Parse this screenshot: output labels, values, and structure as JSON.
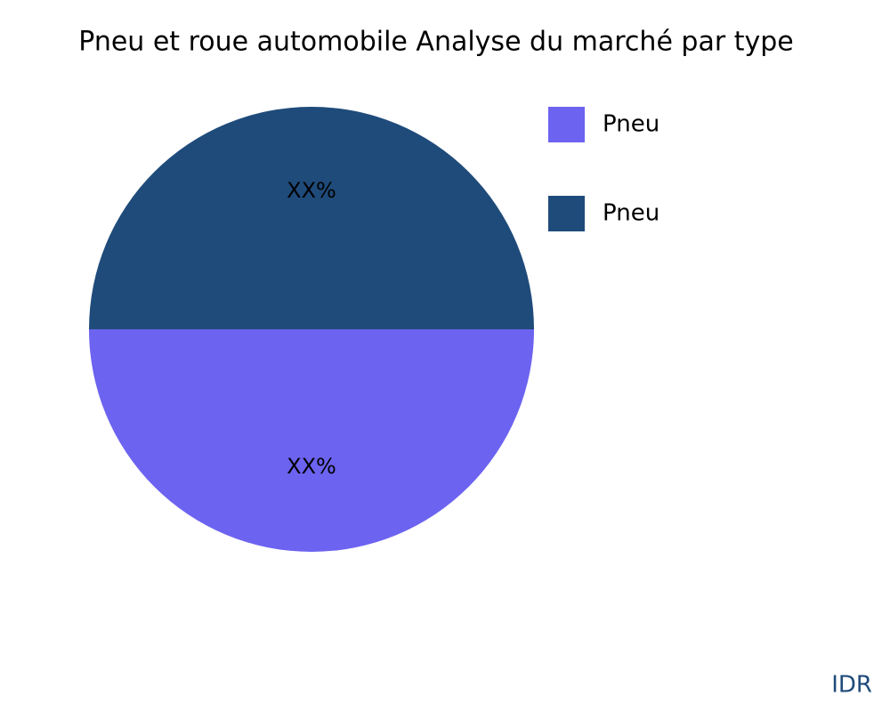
{
  "chart_data": {
    "type": "pie",
    "title": "Pneu et roue automobile Analyse du marché par type",
    "categories": [
      "Pneu",
      "Pneu"
    ],
    "values": [
      50,
      50
    ],
    "value_labels": [
      "XX%",
      "XX%"
    ],
    "colors": [
      "#6c63f0",
      "#1f4b7a"
    ],
    "legend": "top-right",
    "footer": "IDR"
  }
}
